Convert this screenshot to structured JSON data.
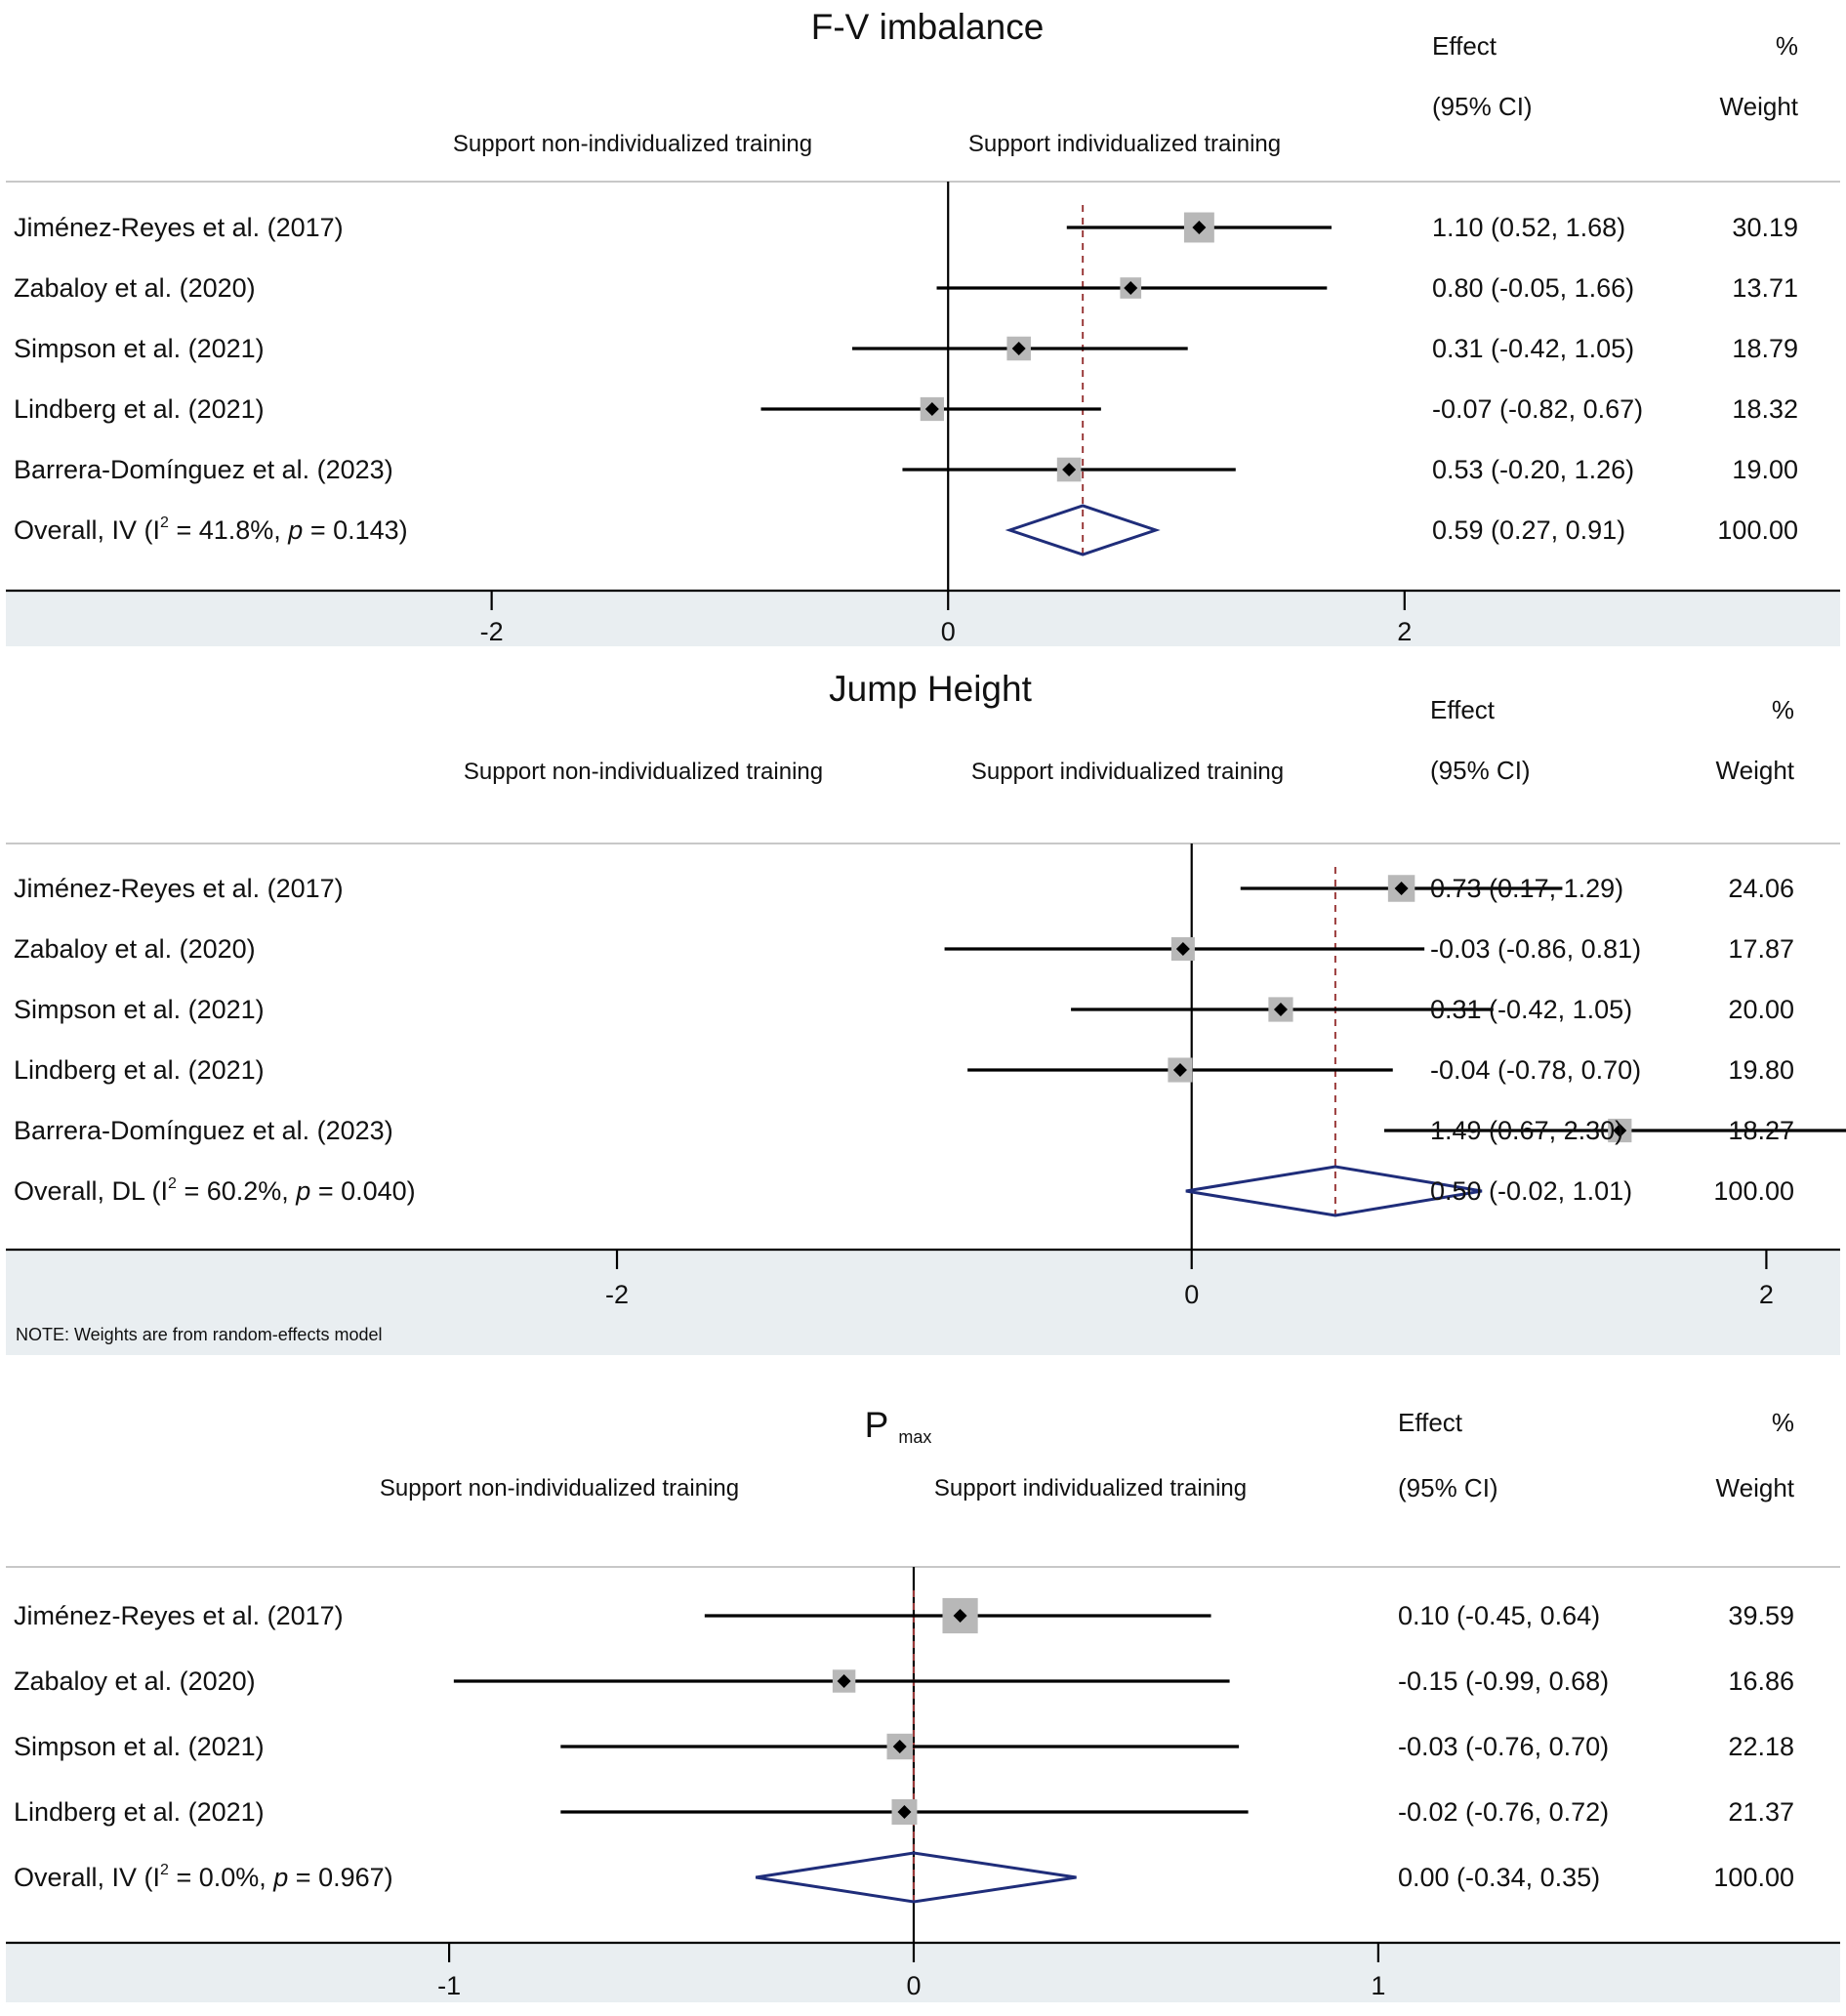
{
  "colors": {
    "band": "#e9eef1",
    "divider": "#c8c8c8",
    "ci_line": "#000000",
    "weight_box": "#b8b8b8",
    "point": "#000000",
    "reference_line": "#9a3a3a",
    "diamond": "#1f2d7a"
  },
  "chart_data": [
    {
      "type": "forest",
      "title": "F-V imbalance",
      "title_main": "F-V imbalance",
      "title_sub": "",
      "direction_left": "Support non-individualized training",
      "direction_right": "Support individualized training",
      "col_effect": [
        "Effect",
        "(95% CI)"
      ],
      "col_weight": [
        "%",
        "Weight"
      ],
      "xlim": [
        -4.12,
        3.9
      ],
      "xticks": [
        -2,
        0,
        2
      ],
      "xtick_labels": [
        "-2",
        "0",
        "2"
      ],
      "studies": [
        {
          "label": "Jiménez-Reyes et al. (2017)",
          "effect": 1.1,
          "lower": 0.52,
          "upper": 1.68,
          "effect_text": "1.10 (0.52, 1.68)",
          "weight": 30.19,
          "weight_text": "30.19"
        },
        {
          "label": "Zabaloy et al. (2020)",
          "effect": 0.8,
          "lower": -0.05,
          "upper": 1.66,
          "effect_text": "0.80 (-0.05, 1.66)",
          "weight": 13.71,
          "weight_text": "13.71"
        },
        {
          "label": "Simpson et al. (2021)",
          "effect": 0.31,
          "lower": -0.42,
          "upper": 1.05,
          "effect_text": "0.31 (-0.42, 1.05)",
          "weight": 18.79,
          "weight_text": "18.79"
        },
        {
          "label": "Lindberg et al. (2021)",
          "effect": -0.07,
          "lower": -0.82,
          "upper": 0.67,
          "effect_text": "-0.07 (-0.82, 0.67)",
          "weight": 18.32,
          "weight_text": "18.32"
        },
        {
          "label": "Barrera-Domínguez et al. (2023)",
          "effect": 0.53,
          "lower": -0.2,
          "upper": 1.26,
          "effect_text": "0.53 (-0.20, 1.26)",
          "weight": 19.0,
          "weight_text": "19.00"
        }
      ],
      "overall": {
        "label_prefix": "Overall, IV (I",
        "i2_sup": "2",
        "i2_value": " = 41.8%, ",
        "p_italic": "p",
        "p_value": " = 0.143)",
        "effect": 0.59,
        "lower": 0.27,
        "upper": 0.91,
        "effect_text": "0.59 (0.27, 0.91)",
        "weight_text": "100.00"
      },
      "note": ""
    },
    {
      "type": "forest",
      "title": "Jump Height",
      "title_main": "Jump Height",
      "title_sub": "",
      "direction_left": "Support non-individualized training",
      "direction_right": "Support individualized training",
      "col_effect": [
        "Effect",
        "(95% CI)"
      ],
      "col_weight": [
        "%",
        "Weight"
      ],
      "xlim": [
        -4.12,
        2.25
      ],
      "xticks": [
        -2,
        0,
        2
      ],
      "xtick_labels": [
        "-2",
        "0",
        "2"
      ],
      "studies": [
        {
          "label": "Jiménez-Reyes et al. (2017)",
          "effect": 0.73,
          "lower": 0.17,
          "upper": 1.29,
          "effect_text": "0.73 (0.17, 1.29)",
          "weight": 24.06,
          "weight_text": "24.06"
        },
        {
          "label": "Zabaloy et al. (2020)",
          "effect": -0.03,
          "lower": -0.86,
          "upper": 0.81,
          "effect_text": "-0.03 (-0.86, 0.81)",
          "weight": 17.87,
          "weight_text": "17.87"
        },
        {
          "label": "Simpson et al. (2021)",
          "effect": 0.31,
          "lower": -0.42,
          "upper": 1.05,
          "effect_text": "0.31 (-0.42, 1.05)",
          "weight": 20.0,
          "weight_text": "20.00"
        },
        {
          "label": "Lindberg et al. (2021)",
          "effect": -0.04,
          "lower": -0.78,
          "upper": 0.7,
          "effect_text": "-0.04 (-0.78, 0.70)",
          "weight": 19.8,
          "weight_text": "19.80"
        },
        {
          "label": "Barrera-Domínguez et al. (2023)",
          "effect": 1.49,
          "lower": 0.67,
          "upper": 2.3,
          "effect_text": "1.49 (0.67, 2.30)",
          "weight": 18.27,
          "weight_text": "18.27"
        }
      ],
      "overall": {
        "label_prefix": "Overall, DL (I",
        "i2_sup": "2",
        "i2_value": " = 60.2%, ",
        "p_italic": "p",
        "p_value": " = 0.040)",
        "effect": 0.5,
        "lower": -0.02,
        "upper": 1.01,
        "effect_text": "0.50 (-0.02, 1.01)",
        "weight_text": "100.00"
      },
      "note": "NOTE: Weights are from random-effects model"
    },
    {
      "type": "forest",
      "title": "P max",
      "title_main": "P",
      "title_sub": "max",
      "direction_left": "Support non-individualized training",
      "direction_right": "Support individualized training",
      "col_effect": [
        "Effect",
        "(95% CI)"
      ],
      "col_weight": [
        "%",
        "Weight"
      ],
      "xlim": [
        -1.95,
        1.99
      ],
      "xticks": [
        -1,
        0,
        1
      ],
      "xtick_labels": [
        "-1",
        "0",
        "1"
      ],
      "studies": [
        {
          "label": "Jiménez-Reyes et al. (2017)",
          "effect": 0.1,
          "lower": -0.45,
          "upper": 0.64,
          "effect_text": "0.10 (-0.45, 0.64)",
          "weight": 39.59,
          "weight_text": "39.59"
        },
        {
          "label": "Zabaloy et al. (2020)",
          "effect": -0.15,
          "lower": -0.99,
          "upper": 0.68,
          "effect_text": "-0.15 (-0.99, 0.68)",
          "weight": 16.86,
          "weight_text": "16.86"
        },
        {
          "label": "Simpson et al. (2021)",
          "effect": -0.03,
          "lower": -0.76,
          "upper": 0.7,
          "effect_text": "-0.03 (-0.76, 0.70)",
          "weight": 22.18,
          "weight_text": "22.18"
        },
        {
          "label": "Lindberg et al. (2021)",
          "effect": -0.02,
          "lower": -0.76,
          "upper": 0.72,
          "effect_text": "-0.02 (-0.76, 0.72)",
          "weight": 21.37,
          "weight_text": "21.37"
        }
      ],
      "overall": {
        "label_prefix": "Overall, IV (I",
        "i2_sup": "2",
        "i2_value": " = 0.0%, ",
        "p_italic": "p",
        "p_value": " = 0.967)",
        "effect": 0.0,
        "lower": -0.34,
        "upper": 0.35,
        "effect_text": "0.00 (-0.34, 0.35)",
        "weight_text": "100.00"
      },
      "note": ""
    }
  ]
}
